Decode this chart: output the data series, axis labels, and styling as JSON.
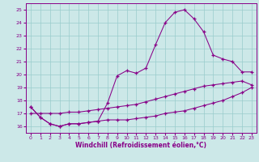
{
  "bg_color": "#cce8e8",
  "line_color": "#880088",
  "grid_color": "#99cccc",
  "xlabel": "Windchill (Refroidissement éolien,°C)",
  "x_ticks": [
    0,
    1,
    2,
    3,
    4,
    5,
    6,
    7,
    8,
    9,
    10,
    11,
    12,
    13,
    14,
    15,
    16,
    17,
    18,
    19,
    20,
    21,
    22,
    23
  ],
  "y_ticks": [
    16,
    17,
    18,
    19,
    20,
    21,
    22,
    23,
    24,
    25
  ],
  "xlim": [
    -0.5,
    23.5
  ],
  "ylim": [
    15.5,
    25.5
  ],
  "y_bottom": [
    17.5,
    16.7,
    16.2,
    16.0,
    16.2,
    16.2,
    16.3,
    16.4,
    16.5,
    16.5,
    16.5,
    16.6,
    16.7,
    16.8,
    17.0,
    17.1,
    17.2,
    17.4,
    17.6,
    17.8,
    18.0,
    18.3,
    18.6,
    19.0
  ],
  "y_top": [
    17.5,
    16.7,
    16.2,
    16.0,
    16.2,
    16.2,
    16.3,
    16.4,
    17.8,
    19.9,
    20.3,
    20.1,
    20.5,
    22.3,
    24.0,
    24.8,
    25.0,
    24.3,
    23.3,
    21.5,
    21.2,
    21.0,
    20.2,
    20.2
  ],
  "y_diag": [
    17.0,
    17.0,
    17.0,
    17.0,
    17.1,
    17.1,
    17.2,
    17.3,
    17.4,
    17.5,
    17.6,
    17.7,
    17.9,
    18.1,
    18.3,
    18.5,
    18.7,
    18.9,
    19.1,
    19.2,
    19.3,
    19.4,
    19.5,
    19.2
  ]
}
